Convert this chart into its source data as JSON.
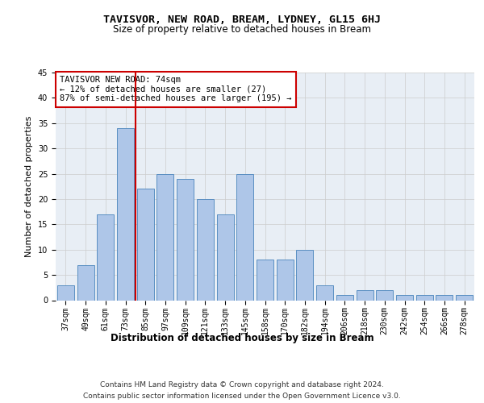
{
  "title1": "TAVISVOR, NEW ROAD, BREAM, LYDNEY, GL15 6HJ",
  "title2": "Size of property relative to detached houses in Bream",
  "xlabel": "Distribution of detached houses by size in Bream",
  "ylabel": "Number of detached properties",
  "categories": [
    "37sqm",
    "49sqm",
    "61sqm",
    "73sqm",
    "85sqm",
    "97sqm",
    "109sqm",
    "121sqm",
    "133sqm",
    "145sqm",
    "158sqm",
    "170sqm",
    "182sqm",
    "194sqm",
    "206sqm",
    "218sqm",
    "230sqm",
    "242sqm",
    "254sqm",
    "266sqm",
    "278sqm"
  ],
  "values": [
    3,
    7,
    17,
    34,
    22,
    25,
    24,
    20,
    17,
    25,
    8,
    8,
    10,
    3,
    1,
    2,
    2,
    1,
    1,
    1,
    1
  ],
  "bar_color": "#aec6e8",
  "bar_edge_color": "#5a8fc2",
  "red_line_x": 3.5,
  "annotation_text": "TAVISVOR NEW ROAD: 74sqm\n← 12% of detached houses are smaller (27)\n87% of semi-detached houses are larger (195) →",
  "annotation_box_color": "#ffffff",
  "annotation_box_edge": "#cc0000",
  "red_line_color": "#cc0000",
  "ylim": [
    0,
    45
  ],
  "yticks": [
    0,
    5,
    10,
    15,
    20,
    25,
    30,
    35,
    40,
    45
  ],
  "grid_color": "#cccccc",
  "bg_color": "#e8eef5",
  "footer1": "Contains HM Land Registry data © Crown copyright and database right 2024.",
  "footer2": "Contains public sector information licensed under the Open Government Licence v3.0.",
  "title1_fontsize": 9.5,
  "title2_fontsize": 8.5,
  "xlabel_fontsize": 8.5,
  "ylabel_fontsize": 8,
  "tick_fontsize": 7,
  "footer_fontsize": 6.5,
  "annotation_fontsize": 7.5
}
